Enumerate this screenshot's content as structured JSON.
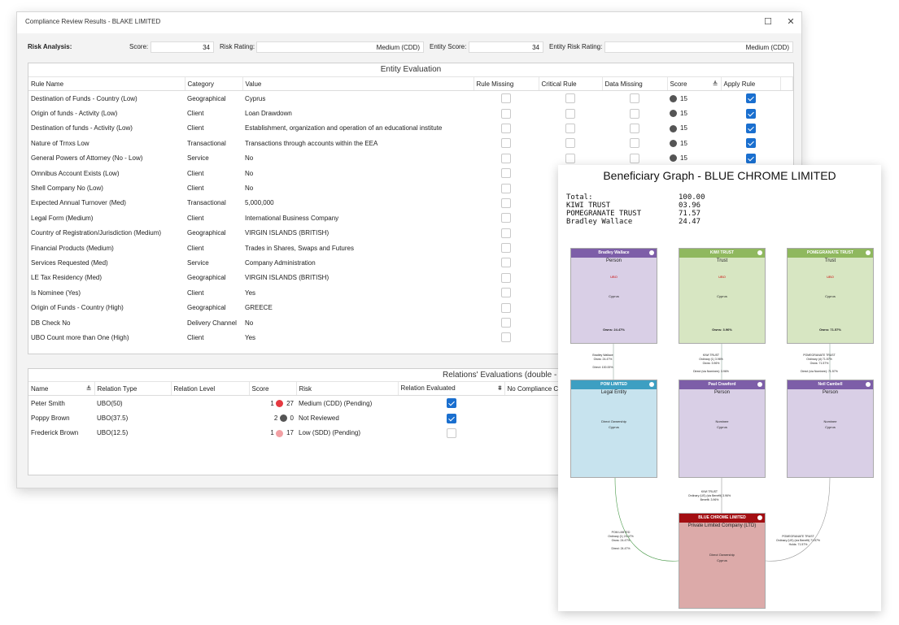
{
  "window": {
    "title": "Compliance Review Results - BLAKE LIMITED",
    "maximize_icon": "☐",
    "close_icon": "✕"
  },
  "risk": {
    "label": "Risk Analysis:",
    "score_label": "Score:",
    "score": "34",
    "rating_label": "Risk Rating:",
    "rating": "Medium (CDD)",
    "entity_score_label": "Entity Score:",
    "entity_score": "34",
    "entity_rating_label": "Entity Risk Rating:",
    "entity_rating": "Medium (CDD)"
  },
  "entity": {
    "title": "Entity Evaluation",
    "columns": [
      "Rule Name",
      "Category",
      "Value",
      "Rule Missing",
      "Critical Rule",
      "Data Missing",
      "Score",
      "Apply Rule"
    ],
    "rows": [
      {
        "rule": "Destination of Funds - Country (Low)",
        "cat": "Geographical",
        "val": "Cyprus",
        "score": "15",
        "apply": true
      },
      {
        "rule": "Origin of funds - Activity (Low)",
        "cat": "Client",
        "val": "Loan Drawdown",
        "score": "15",
        "apply": true
      },
      {
        "rule": "Destination  of funds - Activity (Low)",
        "cat": "Client",
        "val": "Establishment, organization and operation of an educational institute",
        "score": "15",
        "apply": true
      },
      {
        "rule": "Nature of Trnxs Low",
        "cat": "Transactional",
        "val": "Transactions through accounts within the EEA",
        "score": "15",
        "apply": true
      },
      {
        "rule": "General Powers of Attorney (No - Low)",
        "cat": "Service",
        "val": "No",
        "score": "15",
        "apply": true
      },
      {
        "rule": "Omnibus Account Exists (Low)",
        "cat": "Client",
        "val": "No",
        "score": "",
        "apply": false
      },
      {
        "rule": "Shell Company No (Low)",
        "cat": "Client",
        "val": "No",
        "score": "",
        "apply": false
      },
      {
        "rule": "Expected Annual Turnover (Med)",
        "cat": "Transactional",
        "val": "5,000,000",
        "score": "",
        "apply": false
      },
      {
        "rule": "Legal Form (Medium)",
        "cat": "Client",
        "val": "International Business Company",
        "score": "",
        "apply": false
      },
      {
        "rule": "Country of Registration/Jurisdiction (Medium)",
        "cat": "Geographical",
        "val": "VIRGIN ISLANDS (BRITISH)",
        "score": "",
        "apply": false
      },
      {
        "rule": "Financial Products (Medium)",
        "cat": "Client",
        "val": "Trades in Shares, Swaps and Futures",
        "score": "",
        "apply": false
      },
      {
        "rule": "Services Requested (Med)",
        "cat": "Service",
        "val": "Company Administration",
        "score": "",
        "apply": false
      },
      {
        "rule": "LE Tax Residency (Med)",
        "cat": "Geographical",
        "val": "VIRGIN ISLANDS (BRITISH)",
        "score": "",
        "apply": false
      },
      {
        "rule": "Is Nominee (Yes)",
        "cat": "Client",
        "val": "Yes",
        "score": "",
        "apply": false
      },
      {
        "rule": "Origin of Funds - Country (High)",
        "cat": "Geographical",
        "val": "GREECE",
        "score": "",
        "apply": false
      },
      {
        "rule": "DB Check No",
        "cat": "Delivery Channel",
        "val": "No",
        "score": "",
        "apply": false
      },
      {
        "rule": "UBO Count more than One (High)",
        "cat": "Client",
        "val": "Yes",
        "score": "",
        "apply": false
      }
    ]
  },
  "relations": {
    "title": "Relations' Evaluations (double - click to drill down)",
    "columns": [
      "Name",
      "Relation Type",
      "Relation Level",
      "Score",
      "Risk",
      "Relation Evaluated",
      "No Compliance C"
    ],
    "rows": [
      {
        "name": "Peter Smith",
        "type": "UBO(50)",
        "level": "1",
        "score": "27",
        "dot": "#e53940",
        "risk": "Medium (CDD) (Pending)",
        "eval": true
      },
      {
        "name": "Poppy Brown",
        "type": "UBO(37.5)",
        "level": "2",
        "score": "0",
        "dot": "#555555",
        "risk": "Not Reviewed",
        "eval": true
      },
      {
        "name": "Frederick Brown",
        "type": "UBO(12.5)",
        "level": "1",
        "score": "17",
        "dot": "#f2a0a4",
        "risk": "Low (SDD) (Pending)",
        "eval": false
      }
    ]
  },
  "graph": {
    "title": "Beneficiary Graph - BLUE CHROME LIMITED",
    "totals": [
      {
        "k": "Total:",
        "v": "100.00"
      },
      {
        "k": "KIWI TRUST",
        "v": "03.96"
      },
      {
        "k": "POMEGRANATE TRUST",
        "v": "71.57"
      },
      {
        "k": "Bradley Wallace",
        "v": "24.47"
      }
    ],
    "top": [
      {
        "name": "Bradley Wallace",
        "type": "Person",
        "ubo": "UBO",
        "country": "Cyprus",
        "owns": "Owns: 24.47%",
        "head": "#7d5ea8",
        "body": "#d9cfe6"
      },
      {
        "name": "KIWI TRUST",
        "type": "Trust",
        "ubo": "UBO",
        "country": "Cyprus",
        "owns": "Owns: 3.96%",
        "head": "#8fb85e",
        "body": "#d7e6c2"
      },
      {
        "name": "POMEGRANATE TRUST",
        "type": "Trust",
        "ubo": "UBO",
        "country": "Cyprus",
        "owns": "Owns: 71.57%",
        "head": "#8fb85e",
        "body": "#d7e6c2"
      }
    ],
    "mid": [
      {
        "name": "POM LIMITED",
        "type": "Legal Entity",
        "l1": "Direct Ownership",
        "l2": "Cyprus",
        "head": "#3d9fc2",
        "body": "#c7e3ee"
      },
      {
        "name": "Paul Crawford",
        "type": "Person",
        "l1": "Nominee",
        "l2": "Cyprus",
        "head": "#7d5ea8",
        "body": "#d9cfe6"
      },
      {
        "name": "Neil Cambell",
        "type": "Person",
        "l1": "Nominee",
        "l2": "Cyprus",
        "head": "#7d5ea8",
        "body": "#d9cfe6"
      }
    ],
    "root": {
      "name": "BLUE CHROME LIMITED",
      "type": "Private Limited Company (LTD)",
      "l1": "Direct Ownership",
      "l2": "Cyprus",
      "head": "#a30e12",
      "body": "#dcaaa9"
    },
    "edges_top": [
      "Bradley Wallace\nOwns: 24.47%\n\nDirect: 100.00%",
      "KIWI TRUST\nOrdinary (1) 3.96%\nOwns: 3.96%\n\nDirect (via Nominee): 3.96%",
      "POMEGRANATE TRUST\nOrdinary (d) 71.57%\nOwns: 71.57%\n\nDirect (via Nominee): 71.57%"
    ],
    "edges_bottom": [
      "POM LIMITED\nOrdinary (1) 24.47%\nOwns: 24.47%\n\nDirect: 24.47%",
      "KIWI TRUST\nOrdinary (US) (via Benefit) 3.96%\nBenefit: 3.96%",
      "POMEGRANATE TRUST\nOrdinary (US) (via Benefit) 71.57%\nHolds: 71.57%"
    ]
  }
}
